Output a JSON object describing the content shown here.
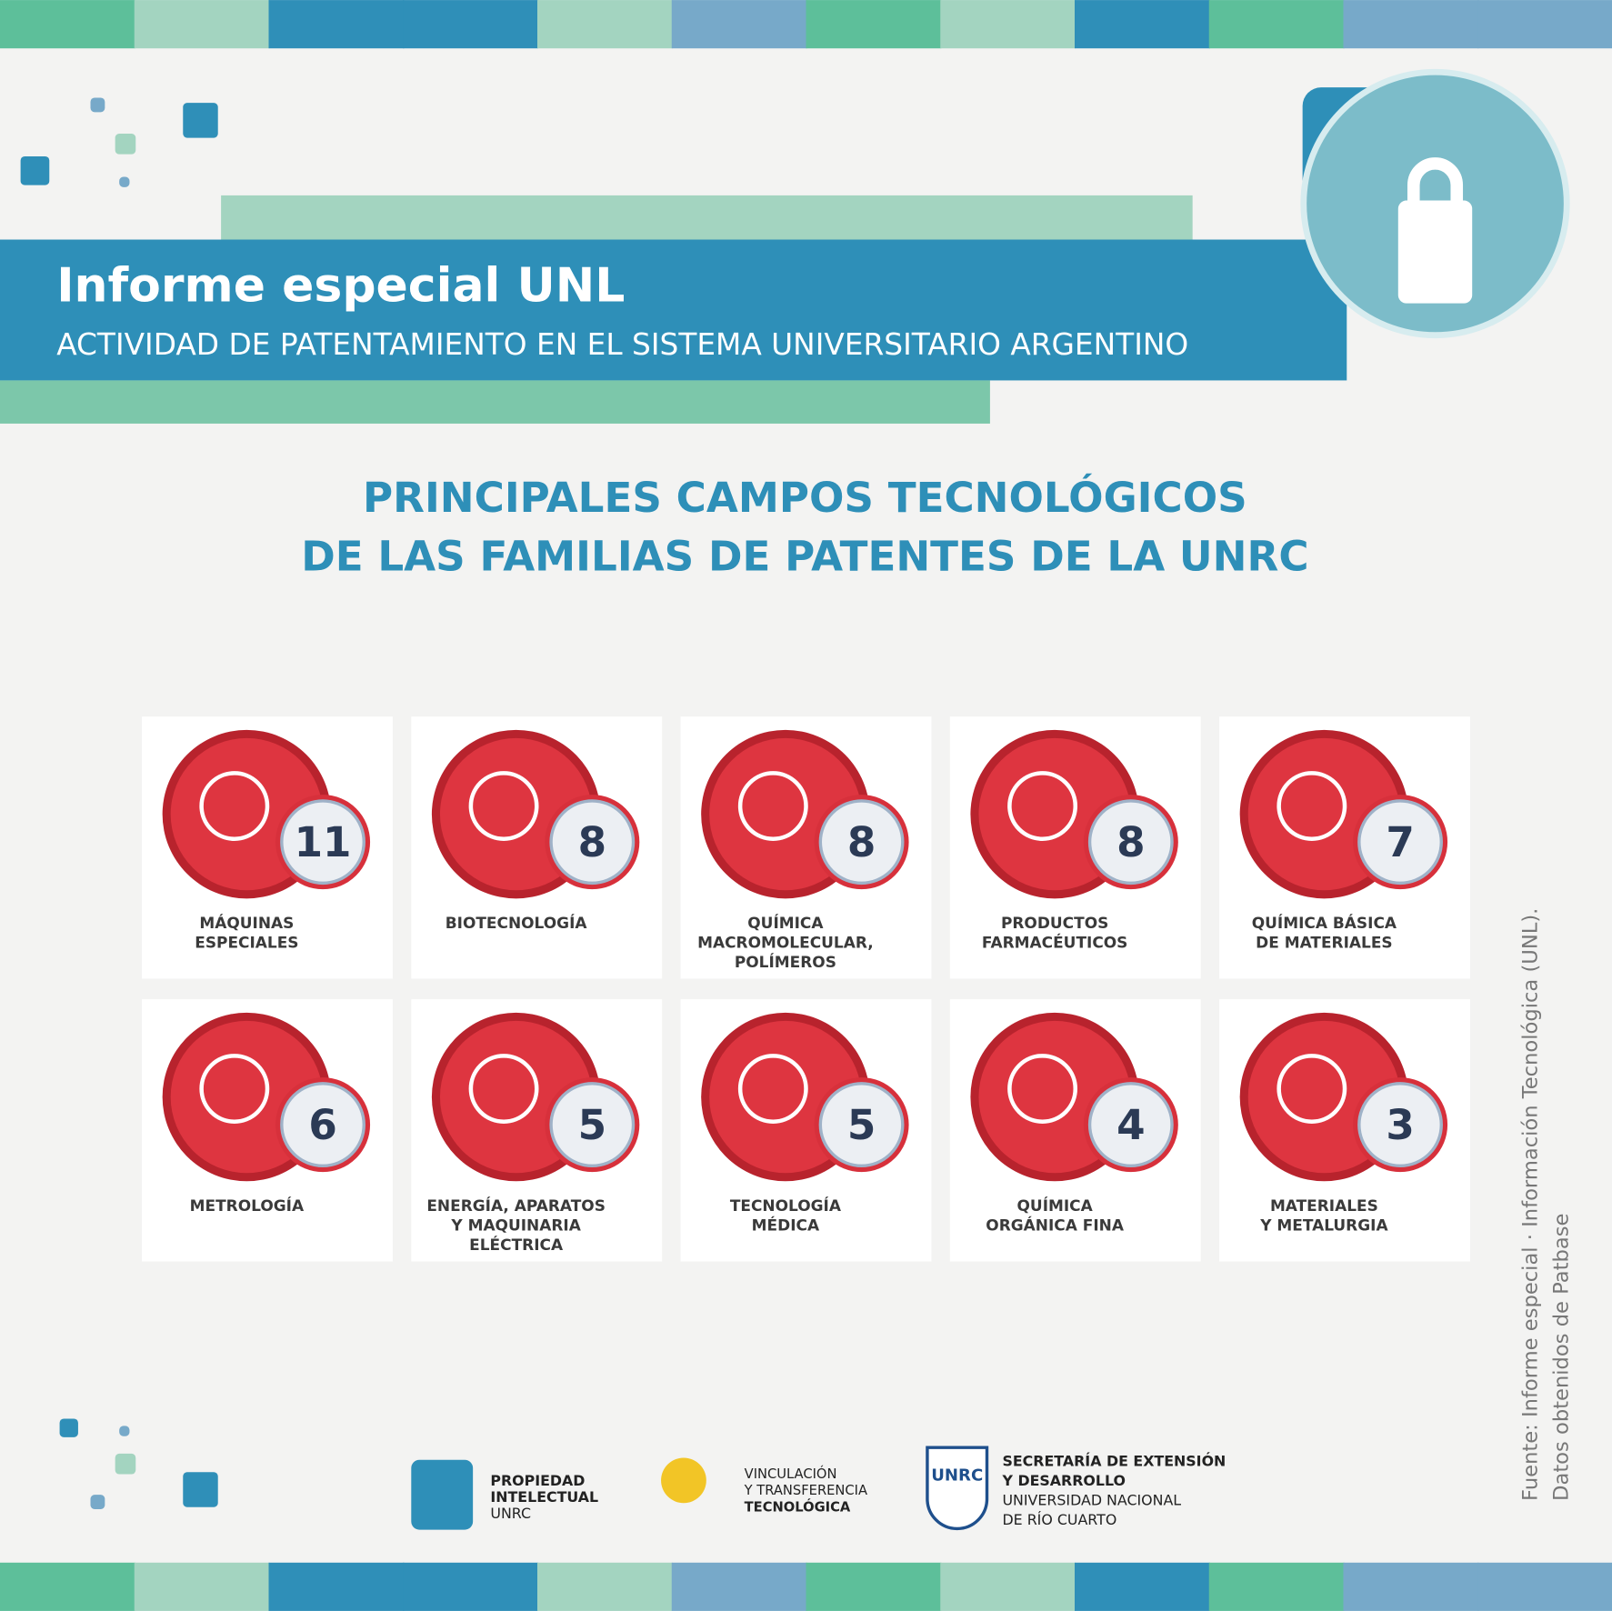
{
  "header": {
    "title": "Informe especial UNL",
    "subtitle": "ACTIVIDAD DE PATENTAMIENTO EN EL SISTEMA UNIVERSITARIO ARGENTINO"
  },
  "heading": {
    "lines": [
      "PRINCIPALES CAMPOS TECNOLÓGICOS",
      "DE LAS FAMILIAS DE PATENTES DE LA UNRC"
    ]
  },
  "cards": [
    {
      "label": [
        "MÁQUINAS",
        "ESPECIALES"
      ],
      "count": "11"
    },
    {
      "label": [
        "BIOTECNOLOGÍA"
      ],
      "count": "8"
    },
    {
      "label": [
        "QUÍMICA",
        "MACROMOLECULAR,",
        "POLÍMEROS"
      ],
      "count": "8"
    },
    {
      "label": [
        "PRODUCTOS",
        "FARMACÉUTICOS"
      ],
      "count": "8"
    },
    {
      "label": [
        "QUÍMICA BÁSICA",
        "DE MATERIALES"
      ],
      "count": "7"
    },
    {
      "label": [
        "METROLOGÍA"
      ],
      "count": "6"
    },
    {
      "label": [
        "ENERGÍA, APARATOS",
        "Y MAQUINARIA",
        "ELÉCTRICA"
      ],
      "count": "5"
    },
    {
      "label": [
        "TECNOLOGÍA",
        "MÉDICA"
      ],
      "count": "5"
    },
    {
      "label": [
        "QUÍMICA",
        "ORGÁNICA FINA"
      ],
      "count": "4"
    },
    {
      "label": [
        "MATERIALES",
        "Y METALURGIA"
      ],
      "count": "3"
    }
  ],
  "source": [
    "Fuente: Informe especial · Información Tecnológica (UNL).",
    "Datos obtenidos de Patbase"
  ],
  "logos": [
    {
      "lines": [
        "PROPIEDAD",
        "INTELECTUAL",
        "UNRC"
      ]
    },
    {
      "lines": [
        "VINCULACIÓN",
        "Y TRANSFERENCIA",
        "TECNOLÓGICA"
      ]
    },
    {
      "badge": "UNRC",
      "lines": [
        "SECRETARÍA DE EXTENSIÓN",
        "Y DESARROLLO",
        "UNIVERSIDAD NACIONAL",
        "DE RÍO CUARTO"
      ]
    }
  ]
}
